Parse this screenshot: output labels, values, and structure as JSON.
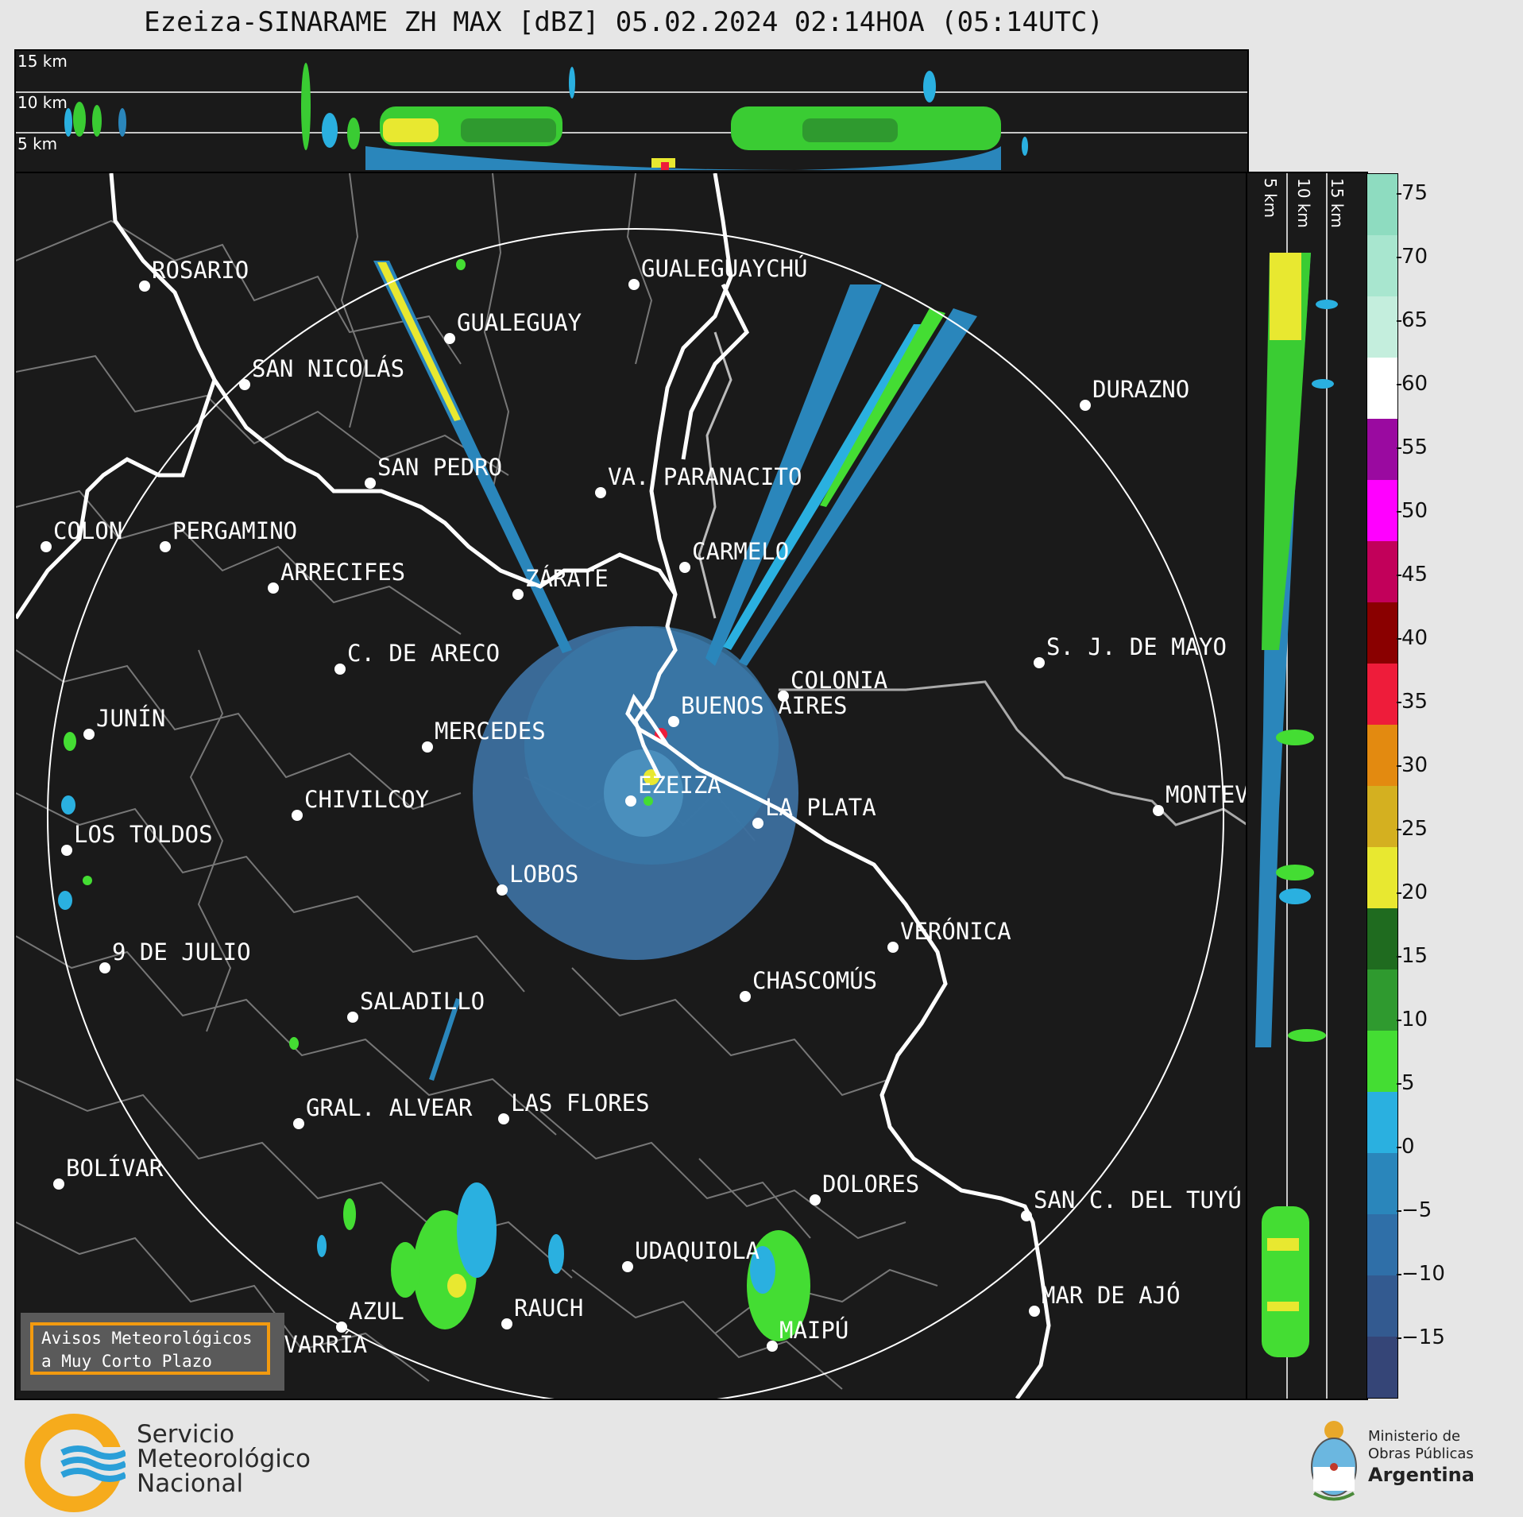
{
  "title": "Ezeiza-SINARAME ZH MAX [dBZ] 05.02.2024 02:14HOA (05:14UTC)",
  "top_panel": {
    "height_labels": [
      "15 km",
      "10 km",
      "5 km"
    ]
  },
  "side_panel": {
    "height_labels": [
      "5 km",
      "10 km",
      "15 km"
    ]
  },
  "colorbar": {
    "unit": "dBZ",
    "ticks": [
      "75",
      "70",
      "65",
      "60",
      "55",
      "50",
      "45",
      "40",
      "35",
      "30",
      "25",
      "20",
      "15",
      "10",
      "5",
      "0",
      "−5",
      "−10",
      "−15"
    ],
    "colors": [
      "#8edcc0",
      "#a8e6cf",
      "#c4eedd",
      "#ffffff",
      "#9a0aa0",
      "#ff00ff",
      "#c2005a",
      "#8a0000",
      "#ee1c3a",
      "#e38a10",
      "#d4b020",
      "#e8e830",
      "#1f6b1f",
      "#2f9a2f",
      "#44dd33",
      "#2ab0e0",
      "#2a86bb",
      "#2f6fa8",
      "#335a90",
      "#354577"
    ]
  },
  "map": {
    "center_label": "EZEIZA",
    "cities": [
      "ROSARIO",
      "GUALEGUAYCHÚ",
      "GUALEGUAY",
      "SAN NICOLÁS",
      "DURAZNO",
      "SAN PEDRO",
      "VA. PARANACITO",
      "COLON",
      "PERGAMINO",
      "CARMELO",
      "ARRECIFES",
      "ZÁRATE",
      "S. J. DE MAYO",
      "C. DE ARECO",
      "COLONIA",
      "JUNÍN",
      "BUENOS AIRES",
      "MERCEDES",
      "EZEIZA",
      "MONTEVIDEO",
      "CHIVILCOY",
      "LA PLATA",
      "LOS TOLDOS",
      "LOBOS",
      "VERÓNICA",
      "9 DE JULIO",
      "CHASCOMÚS",
      "SALADILLO",
      "GRAL. ALVEAR",
      "LAS FLORES",
      "BOLÍVAR",
      "DOLORES",
      "SAN C. DEL TUYÚ",
      "UDAQUIOLA",
      "MAR DE AJÓ",
      "AZUL",
      "RAUCH",
      "MAIPÚ",
      "OLAVARRÍA"
    ]
  },
  "avisos": {
    "line1": "Avisos Meteorológicos",
    "line2": "a Muy Corto Plazo"
  },
  "footer": {
    "smn": [
      "Servicio",
      "Meteorológico",
      "Nacional"
    ],
    "ministerio": [
      "Ministerio de",
      "Obras Públicas",
      "Argentina"
    ]
  }
}
